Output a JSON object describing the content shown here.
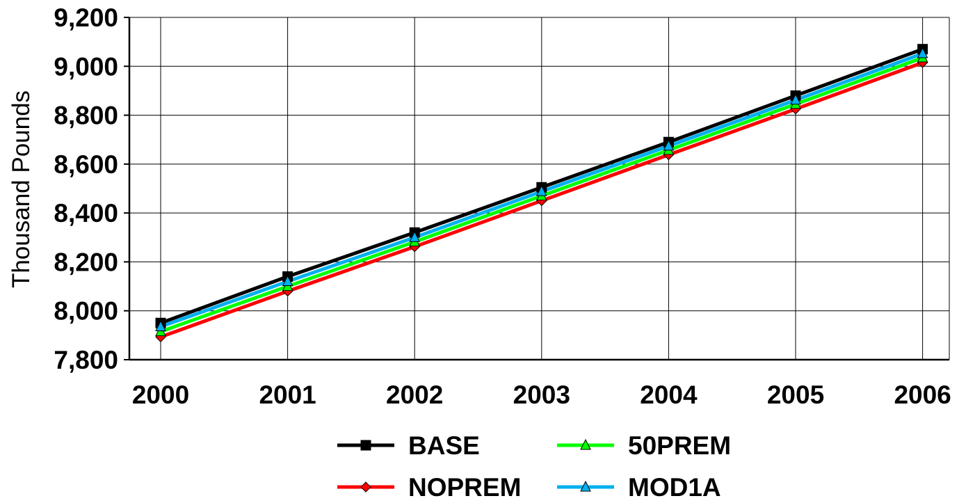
{
  "chart_data": {
    "type": "line",
    "title": "",
    "xlabel": "",
    "ylabel": "Thousand Pounds",
    "x": [
      "2000",
      "2001",
      "2002",
      "2003",
      "2004",
      "2005",
      "2006"
    ],
    "ylim": [
      7800,
      9200
    ],
    "yticks": [
      7800,
      8000,
      8200,
      8400,
      8600,
      8800,
      9000,
      9200
    ],
    "ytick_labels": [
      "7,800",
      "8,000",
      "8,200",
      "8,400",
      "8,600",
      "8,800",
      "9,000",
      "9,200"
    ],
    "grid": true,
    "legend_position": "bottom",
    "series": [
      {
        "name": "BASE",
        "color": "#000000",
        "marker": "square",
        "values": [
          7950,
          8140,
          8320,
          8505,
          8690,
          8880,
          9070
        ]
      },
      {
        "name": "NOPREM",
        "color": "#ff0000",
        "marker": "diamond",
        "values": [
          7893,
          8080,
          8262,
          8450,
          8638,
          8825,
          9015
        ]
      },
      {
        "name": "50PREM",
        "color": "#00ff00",
        "marker": "triangle",
        "values": [
          7915,
          8100,
          8282,
          8470,
          8657,
          8845,
          9035
        ]
      },
      {
        "name": "MOD1A",
        "color": "#00b0f0",
        "marker": "triangle",
        "values": [
          7935,
          8120,
          8300,
          8488,
          8674,
          8862,
          9052
        ]
      }
    ]
  }
}
